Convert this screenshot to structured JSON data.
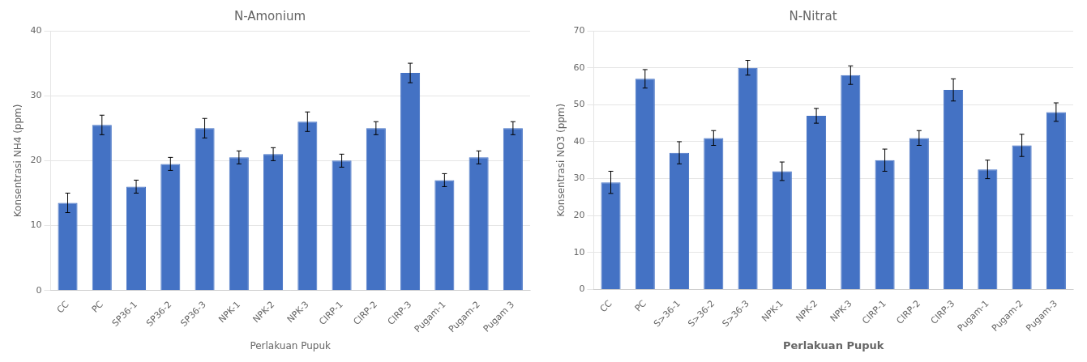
{
  "chart_data": [
    {
      "type": "bar",
      "title": "N-Amonium",
      "xlabel": "Perlakuan Pupuk",
      "ylabel": "Konsentrasi NH4 (ppm)",
      "categories": [
        "CC",
        "PC",
        "SP36-1",
        "SP36-2",
        "SP36-3",
        "NPK-1",
        "NPK-2",
        "NPK-3",
        "CIRP-1",
        "CIRP-2",
        "CIRP-3",
        "Pugam-1",
        "Pugam-2",
        "Pugam 3"
      ],
      "values": [
        13.5,
        25.5,
        16.0,
        19.5,
        25.0,
        20.5,
        21.0,
        26.0,
        20.0,
        25.0,
        33.5,
        17.0,
        20.5,
        25.0
      ],
      "errors": [
        1.5,
        1.5,
        1.0,
        1.0,
        1.5,
        1.0,
        1.0,
        1.5,
        1.0,
        1.0,
        1.5,
        1.0,
        1.0,
        1.0
      ],
      "ylim": [
        0,
        40
      ],
      "yticks": [
        0,
        10,
        20,
        30,
        40
      ],
      "color": "#4472C4",
      "grid": true
    },
    {
      "type": "bar",
      "title": "N-Nitrat",
      "xlabel": "Perlakuan Pupuk",
      "ylabel": "Konsentrasi NO3 (ppm)",
      "categories": [
        "CC",
        "PC",
        "S>36-1",
        "S>36-2",
        "S>36-3",
        "NPK-1",
        "NPK-2",
        "NPK-3",
        "CIRP-1",
        "CIRP-2",
        "CIRP-3",
        "Pugam-1",
        "Pugam-2",
        "Pugam-3"
      ],
      "values": [
        29.0,
        57.0,
        37.0,
        41.0,
        60.0,
        32.0,
        47.0,
        58.0,
        35.0,
        41.0,
        54.0,
        32.5,
        39.0,
        48.0
      ],
      "errors": [
        3.0,
        2.5,
        3.0,
        2.0,
        2.0,
        2.5,
        2.0,
        2.5,
        3.0,
        2.0,
        3.0,
        2.5,
        3.0,
        2.5
      ],
      "ylim": [
        0,
        70
      ],
      "yticks": [
        0,
        10,
        20,
        30,
        40,
        50,
        60,
        70
      ],
      "color": "#4472C4",
      "grid": true
    }
  ]
}
